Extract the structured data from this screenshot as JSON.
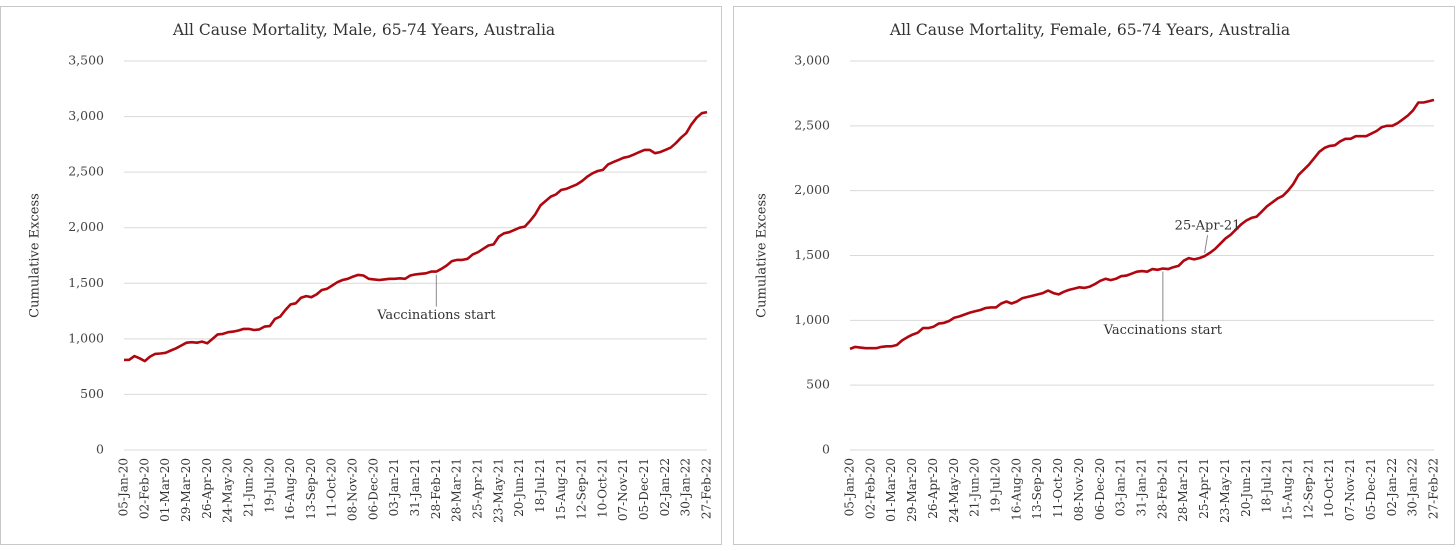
{
  "chart_data": [
    {
      "type": "line",
      "title": "All Cause Mortality, Male, 65-74 Years, Australia",
      "y_label": "Cumulative Excess",
      "categories": [
        "05-Jan-20",
        null,
        null,
        null,
        "02-Feb-20",
        null,
        null,
        null,
        "01-Mar-20",
        null,
        null,
        null,
        "29-Mar-20",
        null,
        null,
        null,
        "26-Apr-20",
        null,
        null,
        null,
        "24-May-20",
        null,
        null,
        null,
        "21-Jun-20",
        null,
        null,
        null,
        "19-Jul-20",
        null,
        null,
        null,
        "16-Aug-20",
        null,
        null,
        null,
        "13-Sep-20",
        null,
        null,
        null,
        "11-Oct-20",
        null,
        null,
        null,
        "08-Nov-20",
        null,
        null,
        null,
        "06-Dec-20",
        null,
        null,
        null,
        "03-Jan-21",
        null,
        null,
        null,
        "31-Jan-21",
        null,
        null,
        null,
        "28-Feb-21",
        null,
        null,
        null,
        "28-Mar-21",
        null,
        null,
        null,
        "25-Apr-21",
        null,
        null,
        null,
        "23-May-21",
        null,
        null,
        null,
        "20-Jun-21",
        null,
        null,
        null,
        "18-Jul-21",
        null,
        null,
        null,
        "15-Aug-21",
        null,
        null,
        null,
        "12-Sep-21",
        null,
        null,
        null,
        "10-Oct-21",
        null,
        null,
        null,
        "07-Nov-21",
        null,
        null,
        null,
        "05-Dec-21",
        null,
        null,
        null,
        "02-Jan-22",
        null,
        null,
        null,
        "30-Jan-22",
        null,
        null,
        null,
        "27-Feb-22"
      ],
      "series": [
        {
          "name": "Cumulative Excess",
          "color": "#b0060f",
          "values": [
            810,
            812,
            845,
            825,
            800,
            840,
            865,
            868,
            875,
            895,
            915,
            940,
            965,
            970,
            965,
            975,
            960,
            1000,
            1040,
            1045,
            1060,
            1065,
            1075,
            1090,
            1090,
            1080,
            1085,
            1110,
            1115,
            1180,
            1200,
            1260,
            1310,
            1320,
            1370,
            1385,
            1375,
            1400,
            1440,
            1450,
            1480,
            1510,
            1530,
            1540,
            1560,
            1575,
            1570,
            1540,
            1535,
            1530,
            1535,
            1540,
            1540,
            1545,
            1540,
            1570,
            1580,
            1585,
            1590,
            1605,
            1605,
            1630,
            1660,
            1700,
            1710,
            1710,
            1720,
            1760,
            1780,
            1810,
            1840,
            1850,
            1920,
            1950,
            1960,
            1980,
            2000,
            2010,
            2060,
            2120,
            2200,
            2240,
            2280,
            2300,
            2340,
            2350,
            2370,
            2390,
            2420,
            2460,
            2490,
            2510,
            2520,
            2570,
            2590,
            2610,
            2630,
            2640,
            2660,
            2680,
            2700,
            2700,
            2670,
            2680,
            2700,
            2720,
            2760,
            2810,
            2850,
            2930,
            2990,
            3030,
            3040
          ]
        }
      ],
      "ylim": [
        0,
        3500
      ],
      "yticks": [
        0,
        500,
        {
          "value": 1000,
          "label": "1,000"
        },
        {
          "value": 1500,
          "label": "1,500"
        },
        {
          "value": 2000,
          "label": "2,000"
        },
        {
          "value": 2500,
          "label": "2,500"
        },
        {
          "value": 3000,
          "label": "3,000"
        },
        {
          "value": 3500,
          "label": "3,500"
        }
      ],
      "grid": true,
      "annotations": [
        {
          "text": "Vaccinations start",
          "category": "28-Feb-21"
        }
      ]
    },
    {
      "type": "line",
      "title": "All Cause Mortality, Female, 65-74 Years, Australia",
      "y_label": "Cumulative Excess",
      "categories": [
        "05-Jan-20",
        null,
        null,
        null,
        "02-Feb-20",
        null,
        null,
        null,
        "01-Mar-20",
        null,
        null,
        null,
        "29-Mar-20",
        null,
        null,
        null,
        "26-Apr-20",
        null,
        null,
        null,
        "24-May-20",
        null,
        null,
        null,
        "21-Jun-20",
        null,
        null,
        null,
        "19-Jul-20",
        null,
        null,
        null,
        "16-Aug-20",
        null,
        null,
        null,
        "13-Sep-20",
        null,
        null,
        null,
        "11-Oct-20",
        null,
        null,
        null,
        "08-Nov-20",
        null,
        null,
        null,
        "06-Dec-20",
        null,
        null,
        null,
        "03-Jan-21",
        null,
        null,
        null,
        "31-Jan-21",
        null,
        null,
        null,
        "28-Feb-21",
        null,
        null,
        null,
        "28-Mar-21",
        null,
        null,
        null,
        "25-Apr-21",
        null,
        null,
        null,
        "23-May-21",
        null,
        null,
        null,
        "20-Jun-21",
        null,
        null,
        null,
        "18-Jul-21",
        null,
        null,
        null,
        "15-Aug-21",
        null,
        null,
        null,
        "12-Sep-21",
        null,
        null,
        null,
        "10-Oct-21",
        null,
        null,
        null,
        "07-Nov-21",
        null,
        null,
        null,
        "05-Dec-21",
        null,
        null,
        null,
        "02-Jan-22",
        null,
        null,
        null,
        "30-Jan-22",
        null,
        null,
        null,
        "27-Feb-22"
      ],
      "series": [
        {
          "name": "Cumulative Excess",
          "color": "#b0060f",
          "values": [
            780,
            795,
            790,
            785,
            785,
            785,
            795,
            800,
            800,
            810,
            845,
            870,
            890,
            905,
            940,
            940,
            950,
            975,
            980,
            995,
            1020,
            1030,
            1045,
            1060,
            1070,
            1080,
            1095,
            1100,
            1100,
            1130,
            1145,
            1130,
            1145,
            1170,
            1180,
            1190,
            1200,
            1210,
            1230,
            1210,
            1200,
            1220,
            1235,
            1245,
            1255,
            1250,
            1260,
            1280,
            1305,
            1320,
            1310,
            1320,
            1340,
            1345,
            1360,
            1375,
            1380,
            1375,
            1395,
            1390,
            1400,
            1395,
            1410,
            1420,
            1460,
            1480,
            1470,
            1480,
            1495,
            1520,
            1550,
            1590,
            1630,
            1660,
            1700,
            1740,
            1770,
            1790,
            1800,
            1840,
            1880,
            1910,
            1940,
            1960,
            2000,
            2050,
            2120,
            2160,
            2200,
            2250,
            2300,
            2330,
            2345,
            2350,
            2380,
            2400,
            2400,
            2420,
            2420,
            2420,
            2440,
            2460,
            2490,
            2500,
            2500,
            2520,
            2550,
            2580,
            2620,
            2680,
            2680,
            2690,
            2700
          ]
        }
      ],
      "ylim": [
        0,
        3000
      ],
      "yticks": [
        0,
        500,
        {
          "value": 1000,
          "label": "1,000"
        },
        {
          "value": 1500,
          "label": "1,500"
        },
        {
          "value": 2000,
          "label": "2,000"
        },
        {
          "value": 2500,
          "label": "2,500"
        },
        {
          "value": 3000,
          "label": "3,000"
        }
      ],
      "grid": true,
      "annotations": [
        {
          "text": "25-Apr-21",
          "category": "25-Apr-21"
        },
        {
          "text": "Vaccinations start",
          "category": "28-Feb-21"
        }
      ]
    }
  ]
}
